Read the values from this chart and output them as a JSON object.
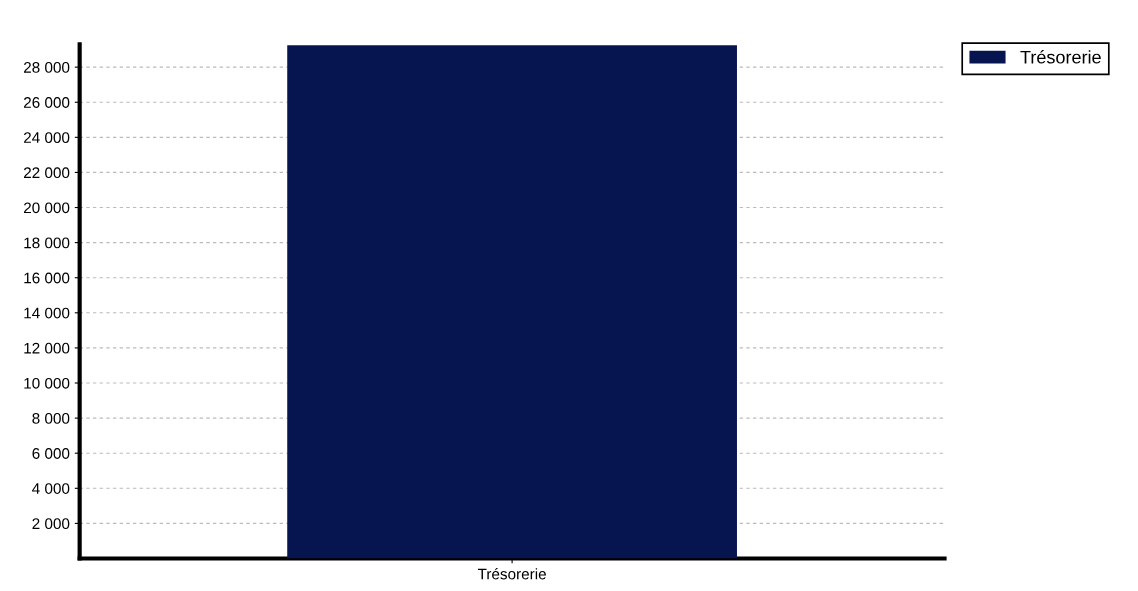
{
  "chart_data": {
    "type": "bar",
    "categories": [
      "Trésorerie"
    ],
    "series": [
      {
        "name": "Trésorerie",
        "color": "#06154f",
        "values": [
          29250
        ]
      }
    ],
    "ylim": [
      0,
      29300
    ],
    "yticks": [
      {
        "value": 2000,
        "label": "2 000"
      },
      {
        "value": 4000,
        "label": "4 000"
      },
      {
        "value": 6000,
        "label": "6 000"
      },
      {
        "value": 8000,
        "label": "8 000"
      },
      {
        "value": 10000,
        "label": "10 000"
      },
      {
        "value": 12000,
        "label": "12 000"
      },
      {
        "value": 14000,
        "label": "14 000"
      },
      {
        "value": 16000,
        "label": "16 000"
      },
      {
        "value": 18000,
        "label": "18 000"
      },
      {
        "value": 20000,
        "label": "20 000"
      },
      {
        "value": 22000,
        "label": "22 000"
      },
      {
        "value": 24000,
        "label": "24 000"
      },
      {
        "value": 26000,
        "label": "26 000"
      },
      {
        "value": 28000,
        "label": "28 000"
      }
    ],
    "grid": "y",
    "legend": "top right"
  }
}
